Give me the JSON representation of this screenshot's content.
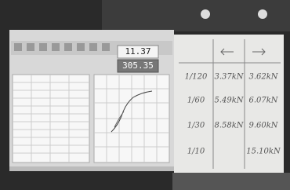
{
  "screen": {
    "readouts": [
      "11.37",
      "305.35"
    ]
  },
  "whiteboard": {
    "rows": [
      {
        "ratio": "1/120",
        "left": "3.37kN",
        "right": "3.62kN"
      },
      {
        "ratio": "1/60",
        "left": "5.49kN",
        "right": "6.07kN"
      },
      {
        "ratio": "1/30",
        "left": "8.58kN",
        "right": "9.60kN"
      },
      {
        "ratio": "1/10",
        "right": "15.10kN"
      }
    ]
  }
}
